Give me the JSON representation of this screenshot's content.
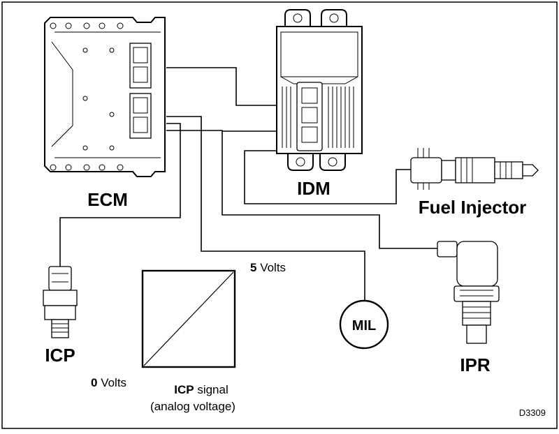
{
  "components": {
    "ecm": "ECM",
    "idm": "IDM",
    "fuel_injector": "Fuel Injector",
    "icp": "ICP",
    "ipr": "IPR",
    "mil": "MIL"
  },
  "signal_graph": {
    "top_value": "5",
    "top_unit": "Volts",
    "bottom_value": "0",
    "bottom_unit": "Volts",
    "title_bold": "ICP",
    "title_rest": "signal",
    "subtitle": "(analog voltage)"
  },
  "figure_id": "D3309"
}
